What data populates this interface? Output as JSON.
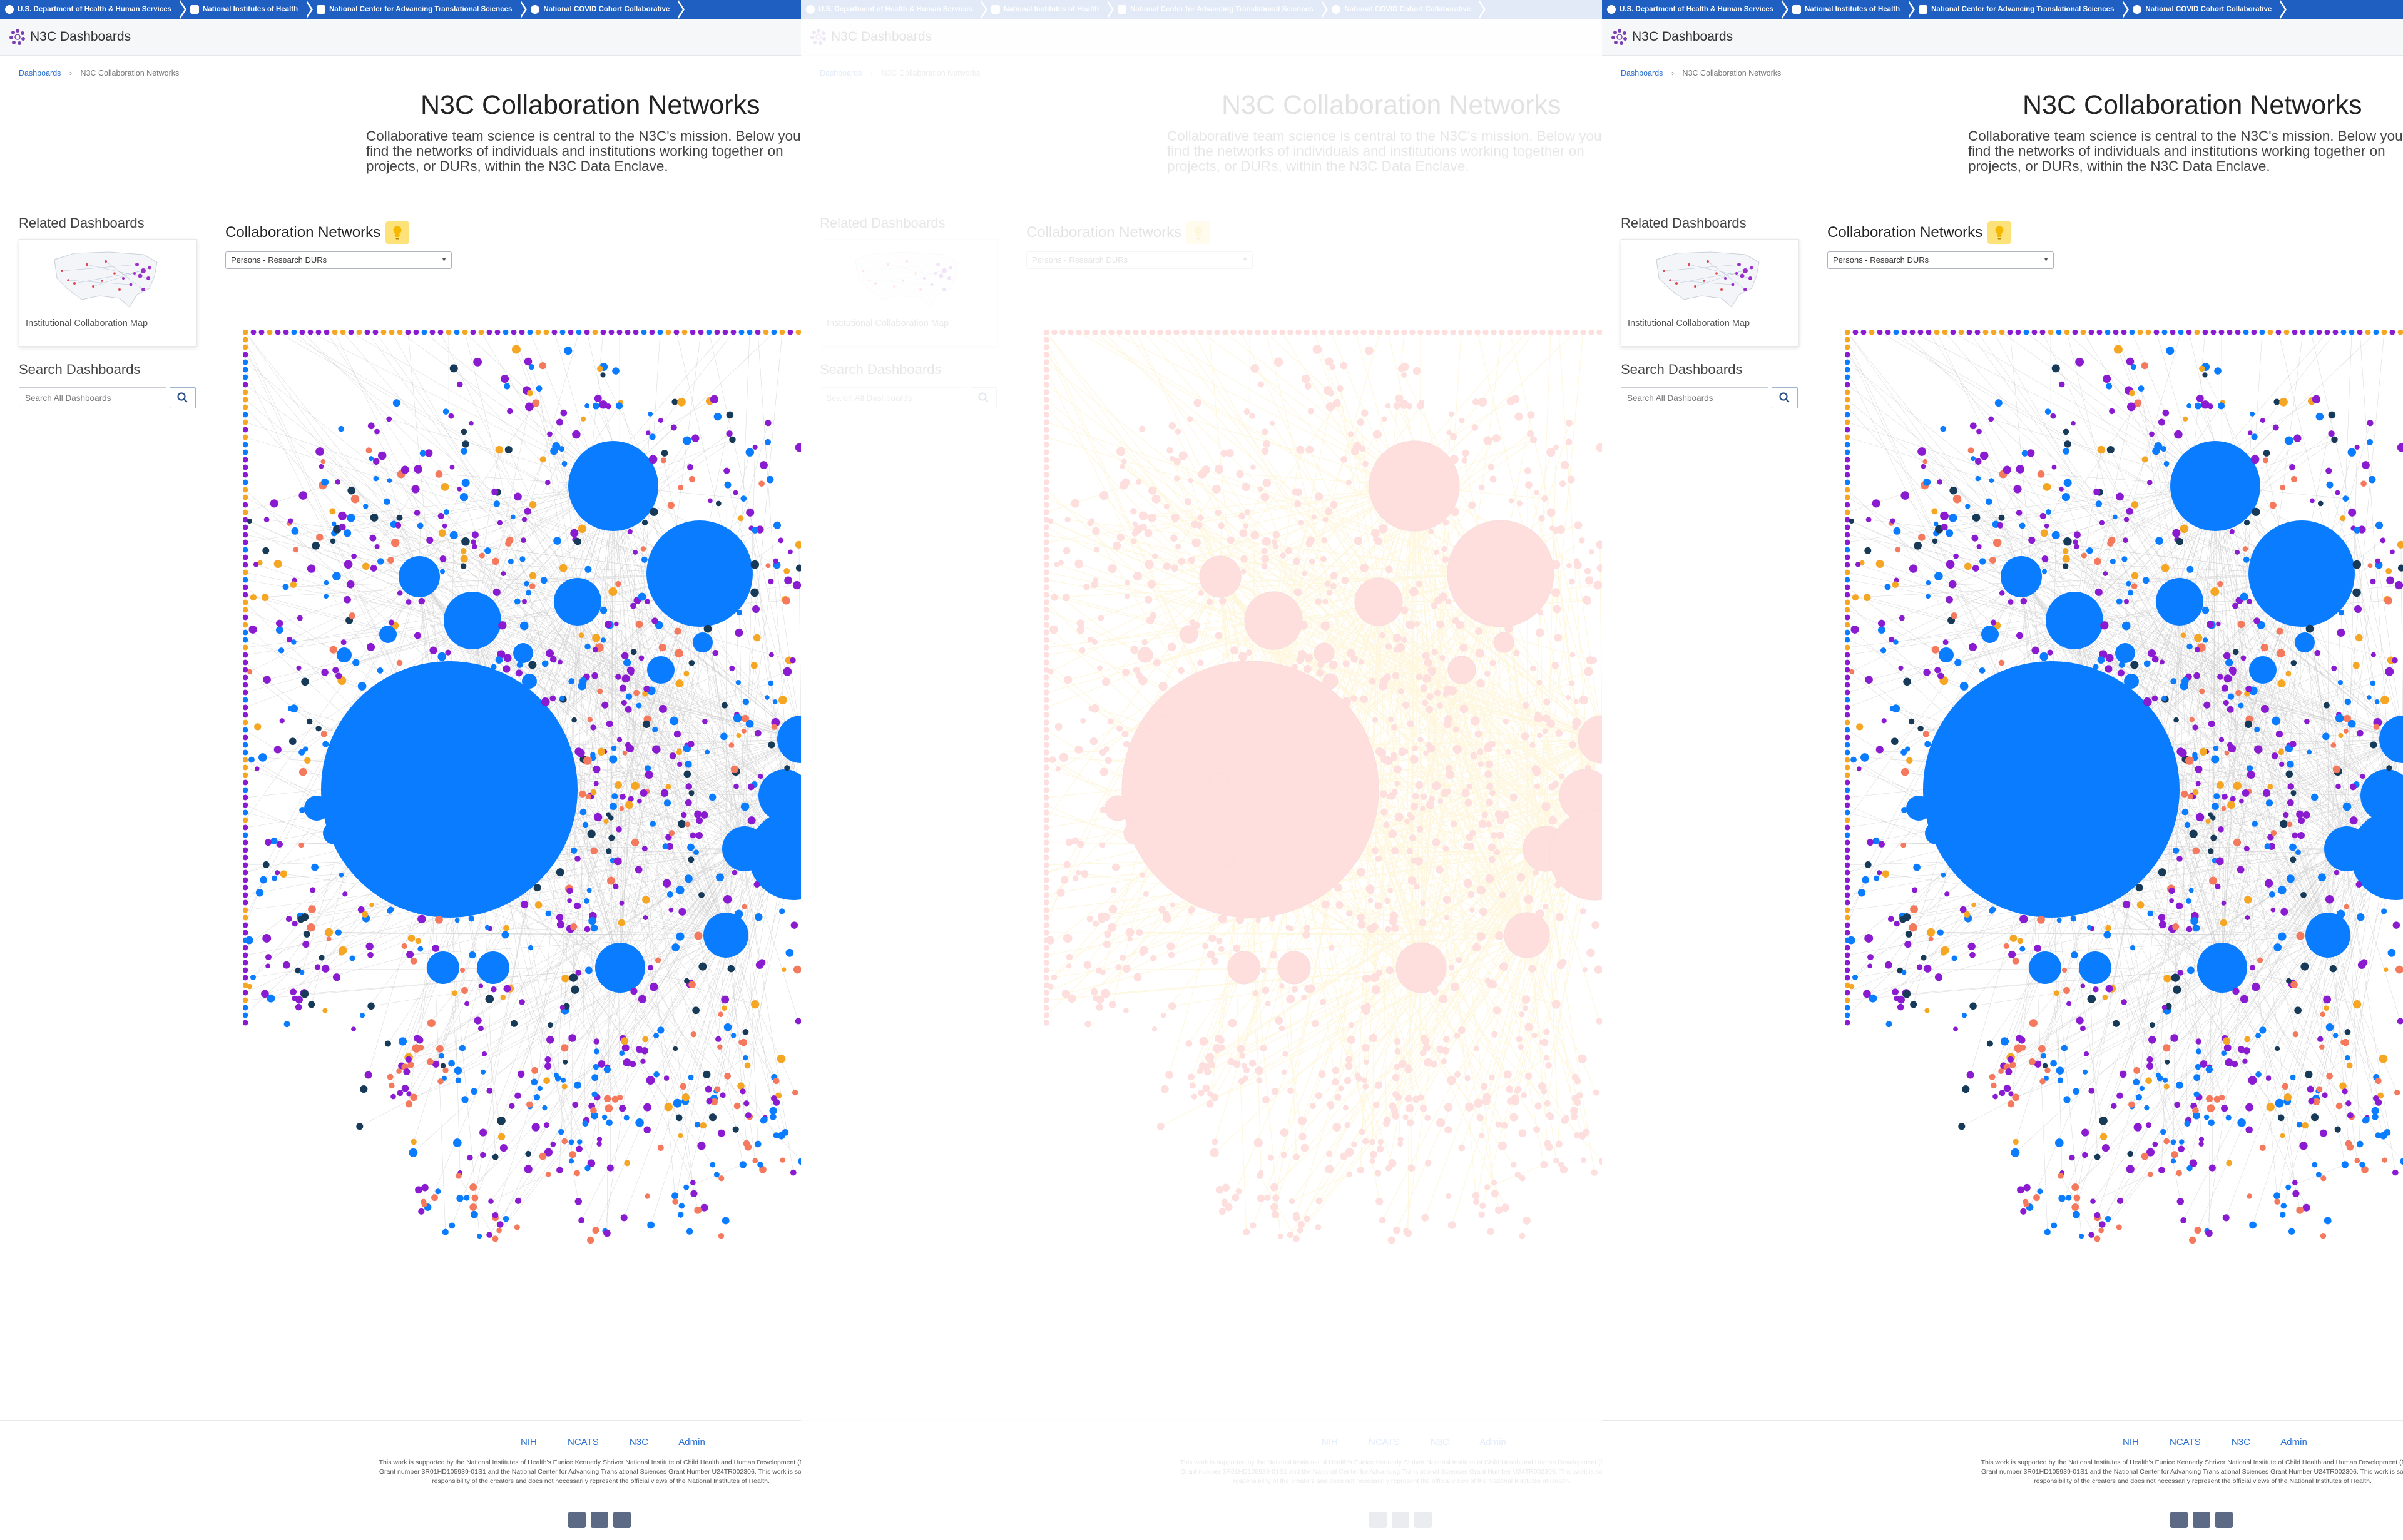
{
  "gov_bar": {
    "items": [
      "U.S. Department of Health & Human Services",
      "National Institutes of Health",
      "National Center for Advancing Translational Sciences",
      "National COVID Cohort Collaborative"
    ]
  },
  "header": {
    "title": "N3C Dashboards"
  },
  "breadcrumb": {
    "home": "Dashboards",
    "current": "N3C Collaboration Networks"
  },
  "page": {
    "title": "N3C Collaboration Networks",
    "intro": "Collaborative team science is central to the N3C's mission. Below you find the networks of individuals and institutions working together on projects, or DURs, within the N3C Data Enclave."
  },
  "sidebar": {
    "related_heading": "Related Dashboards",
    "related_card_label": "Institutional Collaboration Map",
    "search_heading": "Search Dashboards",
    "search_placeholder": "Search All Dashboards"
  },
  "main": {
    "section_heading": "Collaboration Networks",
    "select_value": "Persons - Research DURs"
  },
  "footer": {
    "links": [
      "NIH",
      "NCATS",
      "N3C",
      "Admin"
    ],
    "note": "This work is supported by the National Institutes of Health's Eunice Kennedy Shriver National Institute of Child Health and Human Development (NICHD) Grant number 3R01HD105939-01S1 and the National Center for Advancing Translational Sciences Grant Number U24TR002306. This work is solely the responsibility of the creators and does not necessarily represent the official views of the National Institutes of Health."
  },
  "graph_colors": {
    "blue": "#0a7cff",
    "purple": "#8a1bd1",
    "salmon": "#f4795d",
    "orange": "#f5a623",
    "dark": "#163a57",
    "edge": "#cfcfcf",
    "red": "#ff0000",
    "yellow": "#f3c200"
  },
  "icons": {
    "search_button": "search-icon",
    "bulb": "lightbulb-icon",
    "footer": [
      "email-icon",
      "twitter-icon",
      "github-icon"
    ]
  }
}
